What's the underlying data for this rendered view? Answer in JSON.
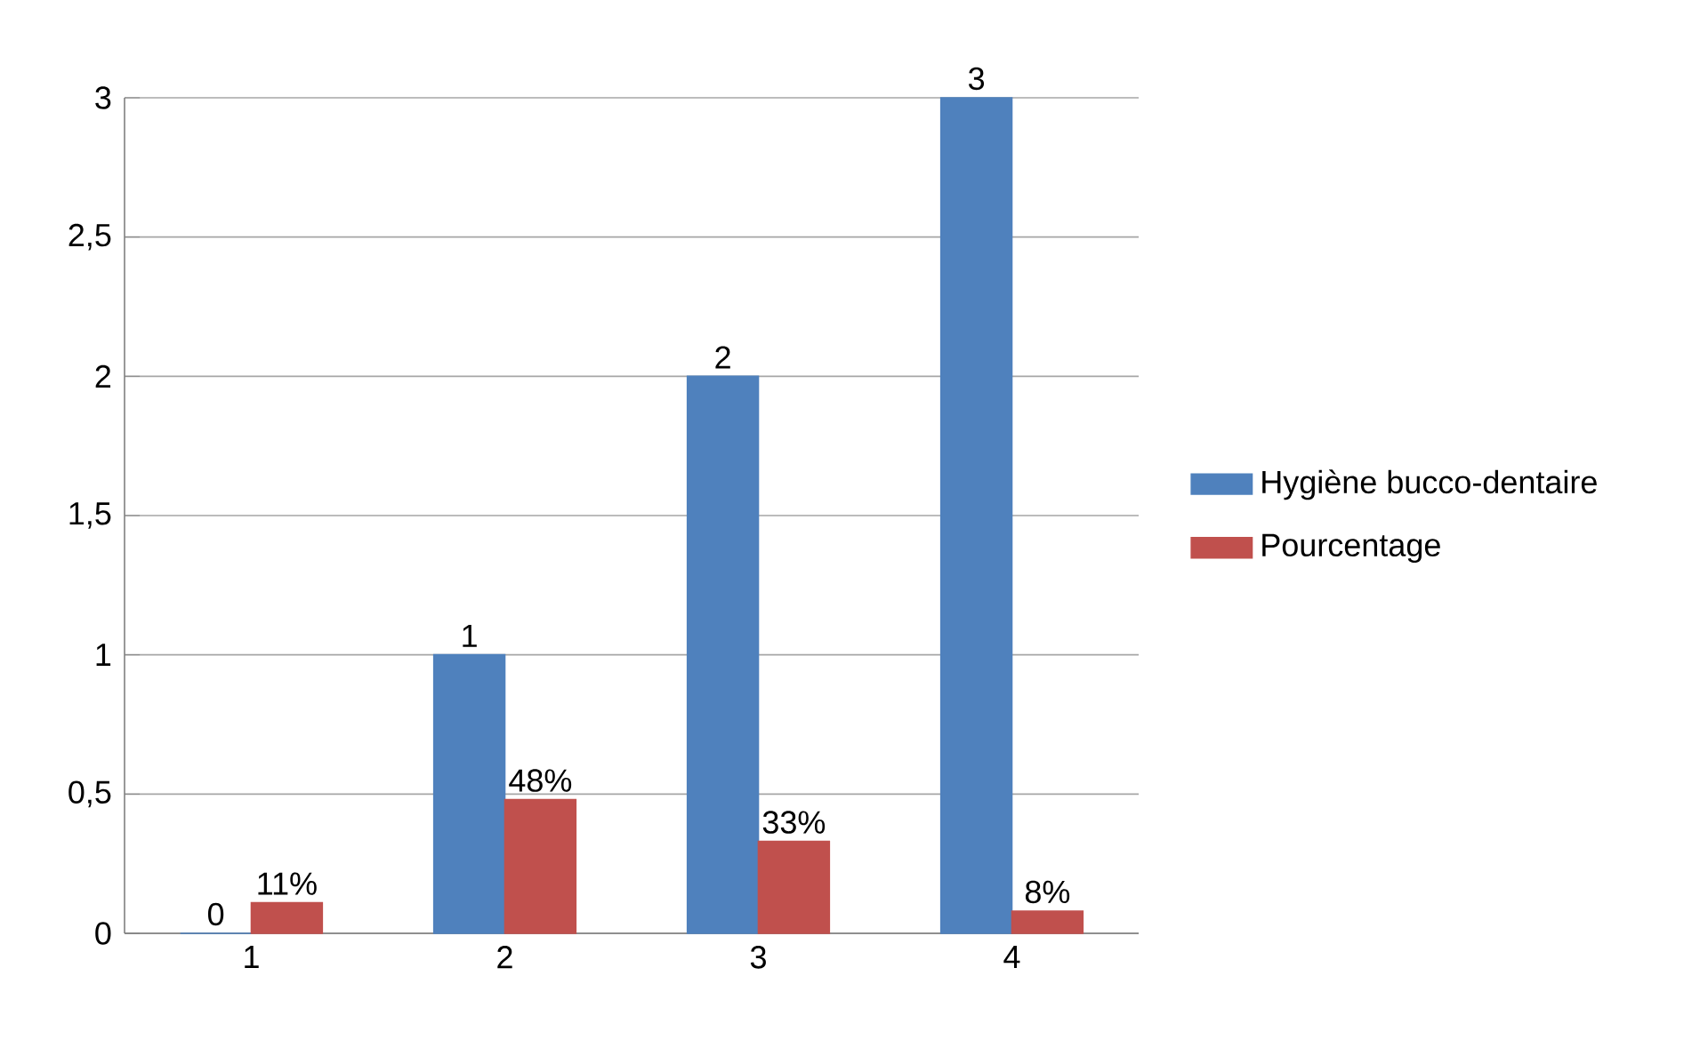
{
  "chart_data": {
    "type": "bar",
    "categories": [
      "1",
      "2",
      "3",
      "4"
    ],
    "series": [
      {
        "name": "Hygiène bucco-dentaire",
        "color": "#4f81bd",
        "values": [
          0,
          1,
          2,
          3
        ],
        "value_labels": [
          "0",
          "1",
          "2",
          "3"
        ]
      },
      {
        "name": "Pourcentage",
        "color": "#c0504d",
        "values": [
          0.11,
          0.48,
          0.33,
          0.08
        ],
        "value_labels": [
          "11%",
          "48%",
          "33%",
          "8%"
        ]
      }
    ],
    "ylim": [
      0,
      3
    ],
    "yticks": [
      0,
      {
        "value": 0.5,
        "label": "0,5"
      },
      1,
      {
        "value": 1.5,
        "label": "1,5"
      },
      2,
      {
        "value": 2.5,
        "label": "2,5"
      },
      3
    ],
    "grid": "y",
    "legend": "right"
  }
}
